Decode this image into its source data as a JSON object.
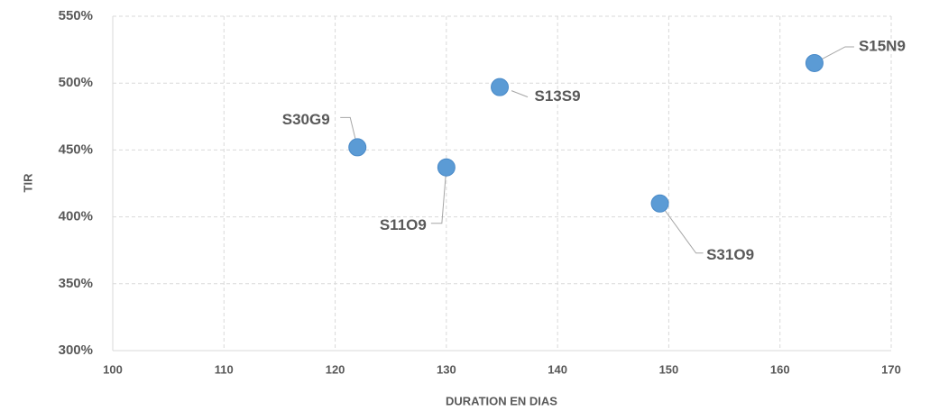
{
  "chart_data": {
    "type": "scatter",
    "x_label": "DURATION  EN DIAS",
    "y_label": "TIR",
    "x": [
      122,
      130,
      134.8,
      149.2,
      163.1
    ],
    "series": [
      {
        "color": "#5b9bd5",
        "values": [
          452,
          437,
          497,
          410,
          515
        ]
      }
    ],
    "point_labels": [
      "S30G9",
      "S11O9",
      "S13S9",
      "S31O9",
      "S15N9"
    ],
    "xlim": [
      100,
      170
    ],
    "xticks": [
      100,
      110,
      120,
      130,
      140,
      150,
      160,
      170
    ],
    "ylim": [
      300,
      550
    ],
    "yticks": [
      {
        "value": 300,
        "label": "300%"
      },
      {
        "value": 350,
        "label": "350%"
      },
      {
        "value": 400,
        "label": "400%"
      },
      {
        "value": 450,
        "label": "450%"
      },
      {
        "value": 500,
        "label": "500%"
      },
      {
        "value": 550,
        "label": "550%"
      }
    ],
    "grid": true
  }
}
